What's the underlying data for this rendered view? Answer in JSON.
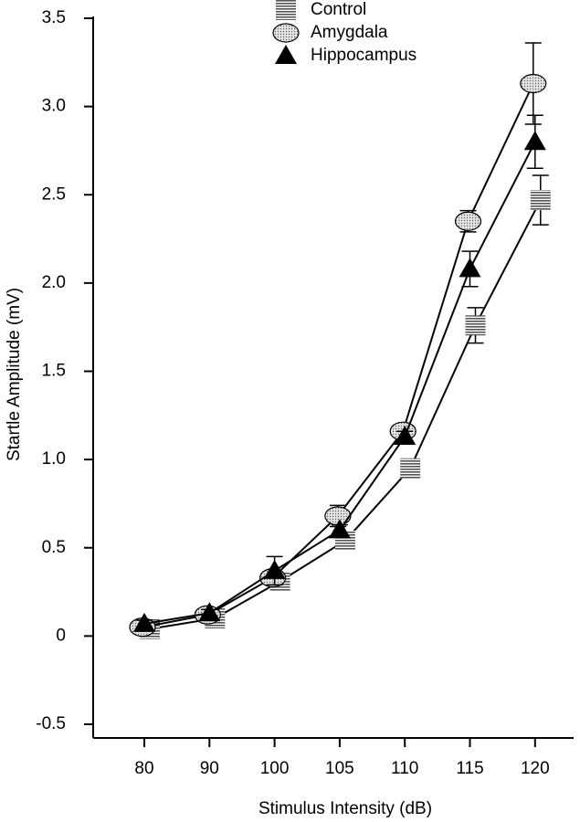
{
  "chart_data": {
    "type": "line",
    "xlabel": "Stimulus Intensity (dB)",
    "ylabel": "Startle Amplitude (mV)",
    "categories": [
      "80",
      "90",
      "100",
      "105",
      "110",
      "115",
      "120"
    ],
    "series": [
      {
        "name": "Control",
        "color": "#808080",
        "marker": "square",
        "values": [
          0.04,
          0.1,
          0.31,
          0.54,
          0.95,
          1.76,
          2.47
        ],
        "errors": [
          0.02,
          0.02,
          0.03,
          0.03,
          0.05,
          0.1,
          0.14
        ]
      },
      {
        "name": "Amygdala",
        "color": "#d0d0d0",
        "marker": "ellipse",
        "values": [
          0.05,
          0.12,
          0.33,
          0.68,
          1.16,
          2.35,
          3.13
        ],
        "errors": [
          0.02,
          0.02,
          0.03,
          0.06,
          0.03,
          0.06,
          0.23
        ]
      },
      {
        "name": "Hippocampus",
        "color": "#000000",
        "marker": "triangle",
        "values": [
          0.07,
          0.13,
          0.37,
          0.6,
          1.13,
          2.08,
          2.8
        ],
        "errors": [
          0.02,
          0.02,
          0.08,
          0.03,
          0.03,
          0.1,
          0.15
        ]
      }
    ],
    "ylim": [
      -0.5,
      3.5
    ],
    "yticks": [
      -0.5,
      0,
      0.5,
      {
        "value": 1,
        "label": "1.0"
      },
      1.5,
      {
        "value": 2,
        "label": "2.0"
      },
      2.5,
      {
        "value": 3,
        "label": "3.0"
      },
      3.5
    ]
  }
}
